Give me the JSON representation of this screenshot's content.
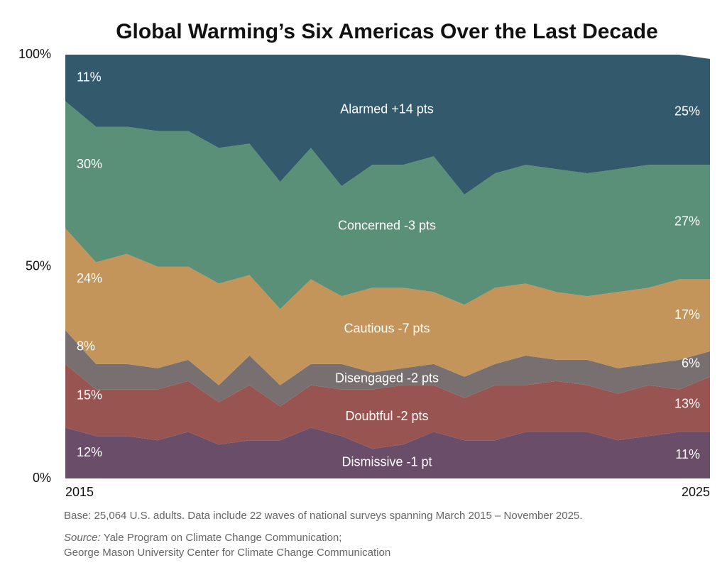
{
  "chart_data": {
    "type": "stacked_area",
    "title": "Global Warming’s Six Americas Over the Last Decade",
    "categories": [
      "2015",
      null,
      null,
      null,
      null,
      null,
      null,
      null,
      null,
      null,
      null,
      null,
      null,
      null,
      null,
      null,
      null,
      null,
      null,
      null,
      null,
      "2025"
    ],
    "ylim": [
      0,
      100
    ],
    "yticks": [
      {
        "value": 0,
        "label": "0%"
      },
      {
        "value": 50,
        "label": "50%"
      },
      {
        "value": 100,
        "label": "100%"
      }
    ],
    "series": [
      {
        "name": "Dismissive -1 pt",
        "color": "#6a4d69",
        "values": [
          12,
          10,
          10,
          9,
          11,
          8,
          9,
          9,
          12,
          10,
          7,
          8,
          11,
          9,
          9,
          11,
          11,
          11,
          9,
          10,
          11,
          11
        ],
        "value_labels": [
          "12%",
          null,
          null,
          null,
          null,
          null,
          null,
          null,
          null,
          null,
          null,
          null,
          null,
          null,
          null,
          null,
          null,
          null,
          null,
          null,
          null,
          "11%"
        ]
      },
      {
        "name": "Doubtful -2 pts",
        "color": "#985450",
        "values": [
          15,
          11,
          11,
          12,
          12,
          10,
          13,
          8,
          10,
          11,
          14,
          14,
          11,
          10,
          13,
          11,
          12,
          11,
          11,
          12,
          10,
          13
        ],
        "value_labels": [
          "15%",
          null,
          null,
          null,
          null,
          null,
          null,
          null,
          null,
          null,
          null,
          null,
          null,
          null,
          null,
          null,
          null,
          null,
          null,
          null,
          null,
          "13%"
        ]
      },
      {
        "name": "Disengaged -2 pts",
        "color": "#787070",
        "values": [
          8,
          6,
          6,
          5,
          5,
          4,
          7,
          5,
          5,
          6,
          4,
          4,
          5,
          5,
          5,
          7,
          5,
          6,
          6,
          5,
          7,
          6
        ],
        "value_labels": [
          "8%",
          null,
          null,
          null,
          null,
          null,
          null,
          null,
          null,
          null,
          null,
          null,
          null,
          null,
          null,
          null,
          null,
          null,
          null,
          null,
          null,
          "6%"
        ]
      },
      {
        "name": "Cautious -7 pts",
        "color": "#c3955b",
        "values": [
          24,
          24,
          26,
          24,
          22,
          24,
          19,
          18,
          20,
          16,
          20,
          19,
          17,
          17,
          18,
          17,
          16,
          15,
          18,
          18,
          19,
          17
        ],
        "value_labels": [
          "24%",
          null,
          null,
          null,
          null,
          null,
          null,
          null,
          null,
          null,
          null,
          null,
          null,
          null,
          null,
          null,
          null,
          null,
          null,
          null,
          null,
          "17%"
        ]
      },
      {
        "name": "Concerned -3 pts",
        "color": "#5a8f78",
        "values": [
          30,
          32,
          30,
          32,
          32,
          32,
          31,
          30,
          31,
          26,
          29,
          29,
          32,
          26,
          27,
          28,
          29,
          29,
          29,
          29,
          27,
          27
        ],
        "value_labels": [
          "30%",
          null,
          null,
          null,
          null,
          null,
          null,
          null,
          null,
          null,
          null,
          null,
          null,
          null,
          null,
          null,
          null,
          null,
          null,
          null,
          null,
          "27%"
        ]
      },
      {
        "name": "Alarmed +14 pts",
        "color": "#33596c",
        "values": [
          11,
          17,
          17,
          18,
          18,
          22,
          21,
          30,
          22,
          31,
          26,
          26,
          24,
          33,
          28,
          26,
          27,
          28,
          27,
          26,
          26,
          25
        ],
        "value_labels": [
          "11%",
          null,
          null,
          null,
          null,
          null,
          null,
          null,
          null,
          null,
          null,
          null,
          null,
          null,
          null,
          null,
          null,
          null,
          null,
          null,
          null,
          "25%"
        ]
      }
    ],
    "note": "Base: 25,064 U.S. adults. Data include 22 waves of national surveys spanning March 2015 – November 2025.",
    "source_label": "Source:",
    "source_lines": [
      "Yale Program on Climate Change Communication;",
      "George Mason University Center for Climate Change Communication"
    ]
  }
}
